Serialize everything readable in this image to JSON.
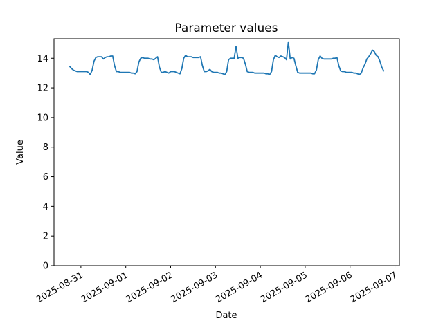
{
  "chart_data": {
    "type": "line",
    "title": "Parameter values",
    "xlabel": "Date",
    "ylabel": "Value",
    "line_color": "#1f77b4",
    "grid": false,
    "legend": "none",
    "x_tick_labels": [
      "2025-08-31",
      "2025-09-01",
      "2025-09-02",
      "2025-09-03",
      "2025-09-04",
      "2025-09-05",
      "2025-09-06",
      "2025-09-07"
    ],
    "y_ticks": [
      0,
      2,
      4,
      6,
      8,
      10,
      12,
      14
    ],
    "ylim": [
      0,
      15.32
    ],
    "xlim_days_from_first_tick": [
      -0.6,
      7.1
    ],
    "x_start": "2025-08-30 18:00",
    "x_start_offset_days": -0.25,
    "x_step_days": 0.0416667,
    "x_step": "1 hour",
    "values": [
      13.45,
      13.3,
      13.2,
      13.15,
      13.1,
      13.1,
      13.1,
      13.1,
      13.1,
      13.1,
      13.05,
      12.9,
      13.2,
      13.8,
      14.05,
      14.1,
      14.1,
      14.1,
      13.95,
      14.05,
      14.1,
      14.1,
      14.15,
      14.15,
      13.5,
      13.1,
      13.1,
      13.05,
      13.05,
      13.05,
      13.05,
      13.05,
      13.05,
      13.0,
      13.0,
      12.95,
      13.1,
      13.75,
      14.0,
      14.05,
      14.0,
      14.0,
      14.0,
      13.95,
      13.95,
      13.9,
      14.0,
      14.1,
      13.4,
      13.05,
      13.05,
      13.1,
      13.05,
      13.0,
      13.1,
      13.1,
      13.1,
      13.05,
      13.0,
      12.95,
      13.3,
      14.0,
      14.2,
      14.1,
      14.1,
      14.1,
      14.05,
      14.05,
      14.05,
      14.05,
      14.1,
      13.5,
      13.1,
      13.1,
      13.15,
      13.25,
      13.1,
      13.05,
      13.05,
      13.05,
      13.0,
      13.0,
      12.95,
      12.9,
      13.1,
      13.9,
      14.0,
      14.0,
      14.0,
      14.8,
      14.0,
      14.05,
      14.05,
      14.0,
      13.6,
      13.1,
      13.05,
      13.05,
      13.05,
      13.0,
      13.0,
      13.0,
      13.0,
      13.0,
      13.0,
      12.95,
      12.95,
      12.9,
      13.1,
      13.9,
      14.2,
      14.1,
      14.05,
      14.15,
      14.1,
      14.05,
      13.9,
      15.1,
      13.95,
      14.05,
      14.0,
      13.5,
      13.05,
      13.0,
      13.0,
      13.0,
      13.0,
      13.0,
      13.0,
      13.0,
      12.95,
      12.95,
      13.2,
      13.9,
      14.15,
      14.0,
      13.95,
      13.95,
      13.95,
      13.95,
      13.95,
      14.0,
      14.0,
      14.05,
      13.5,
      13.15,
      13.1,
      13.1,
      13.05,
      13.05,
      13.05,
      13.05,
      13.0,
      13.0,
      12.95,
      12.9,
      13.0,
      13.35,
      13.6,
      13.95,
      14.1,
      14.3,
      14.55,
      14.45,
      14.2,
      14.1,
      13.8,
      13.4,
      13.15
    ]
  }
}
